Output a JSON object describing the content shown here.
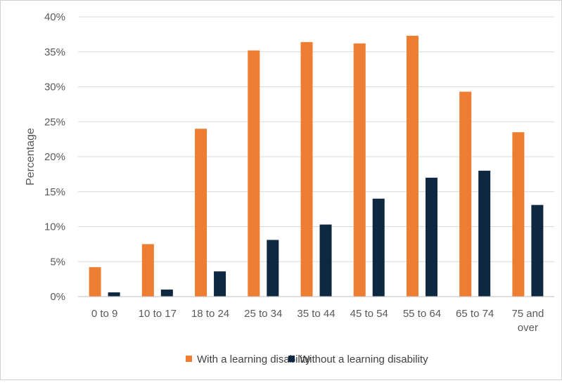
{
  "chart_data": {
    "type": "bar",
    "title": "",
    "xlabel": "",
    "ylabel": "Percentage",
    "ylim": [
      0,
      40
    ],
    "y_tick_labels": [
      "0%",
      "5%",
      "10%",
      "15%",
      "20%",
      "25%",
      "30%",
      "35%",
      "40%"
    ],
    "categories": [
      [
        "0 to 9"
      ],
      [
        "10 to 17"
      ],
      [
        "18 to 24"
      ],
      [
        "25 to 34"
      ],
      [
        "35 to 44"
      ],
      [
        "45 to 54"
      ],
      [
        "55 to 64"
      ],
      [
        "65 to 74"
      ],
      [
        "75 and",
        "over"
      ]
    ],
    "series": [
      {
        "name": "With a learning disability",
        "color": "#ED7D31",
        "values": [
          4.2,
          7.5,
          24.0,
          35.2,
          36.4,
          36.2,
          37.3,
          29.3,
          23.5
        ]
      },
      {
        "name": "Without a learning disability",
        "color": "#0E2841",
        "values": [
          0.6,
          1.0,
          3.6,
          8.1,
          10.3,
          14.0,
          17.0,
          18.0,
          13.1
        ]
      }
    ],
    "grid": true,
    "legend_position": "bottom"
  }
}
